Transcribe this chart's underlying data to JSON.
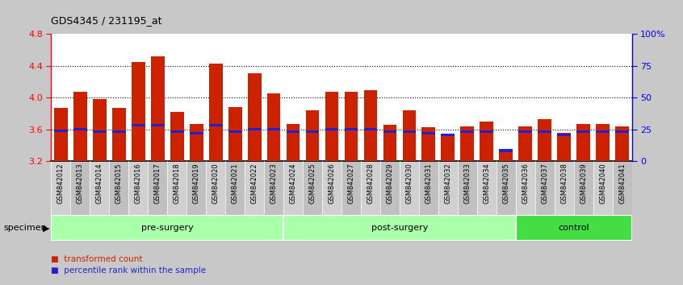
{
  "title": "GDS4345 / 231195_at",
  "samples": [
    "GSM842012",
    "GSM842013",
    "GSM842014",
    "GSM842015",
    "GSM842016",
    "GSM842017",
    "GSM842018",
    "GSM842019",
    "GSM842020",
    "GSM842021",
    "GSM842022",
    "GSM842023",
    "GSM842024",
    "GSM842025",
    "GSM842026",
    "GSM842027",
    "GSM842028",
    "GSM842029",
    "GSM842030",
    "GSM842031",
    "GSM842032",
    "GSM842033",
    "GSM842034",
    "GSM842035",
    "GSM842036",
    "GSM842037",
    "GSM842038",
    "GSM842039",
    "GSM842040",
    "GSM842041"
  ],
  "transformed_count": [
    3.87,
    4.07,
    3.98,
    3.87,
    4.45,
    4.52,
    3.82,
    3.67,
    4.43,
    3.88,
    4.31,
    4.05,
    3.67,
    3.84,
    4.07,
    4.07,
    4.09,
    3.66,
    3.84,
    3.63,
    3.53,
    3.64,
    3.7,
    3.33,
    3.64,
    3.73,
    3.56,
    3.67,
    3.67,
    3.64
  ],
  "percentile_rank": [
    3.58,
    3.6,
    3.57,
    3.57,
    3.65,
    3.65,
    3.57,
    3.55,
    3.65,
    3.57,
    3.6,
    3.6,
    3.57,
    3.57,
    3.6,
    3.6,
    3.6,
    3.57,
    3.57,
    3.55,
    3.53,
    3.57,
    3.57,
    3.33,
    3.57,
    3.57,
    3.53,
    3.57,
    3.57,
    3.57
  ],
  "group_labels": [
    "pre-surgery",
    "post-surgery",
    "control"
  ],
  "group_starts": [
    0,
    12,
    24
  ],
  "group_ends": [
    12,
    24,
    30
  ],
  "group_colors": [
    "#aaffaa",
    "#aaffaa",
    "#44dd44"
  ],
  "ymin": 3.2,
  "ymax": 4.8,
  "yticks": [
    3.2,
    3.6,
    4.0,
    4.4,
    4.8
  ],
  "ytick_labels": [
    "3.2",
    "3.6",
    "4.0",
    "4.4",
    "4.8"
  ],
  "bar_color": "#CC2200",
  "percentile_color": "#2222CC",
  "bg_color": "#FFFFFF",
  "fig_bg_color": "#C8C8C8",
  "specimen_label": "specimen",
  "legend_items": [
    {
      "label": "transformed count",
      "color": "#CC2200"
    },
    {
      "label": "percentile rank within the sample",
      "color": "#2222CC"
    }
  ]
}
